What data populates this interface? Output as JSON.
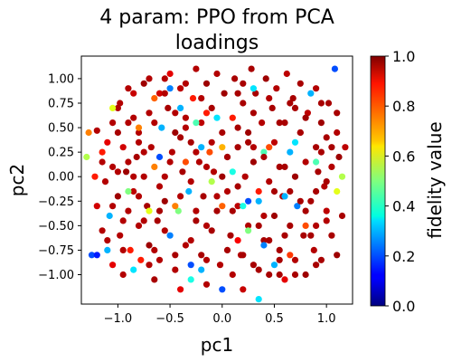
{
  "chart_data": {
    "type": "scatter",
    "title_line1": "4 param:  PPO from PCA",
    "title_line2": "loadings",
    "xlabel": "pc1",
    "ylabel": "pc2",
    "xlim": [
      -1.35,
      1.25
    ],
    "ylim": [
      -1.3,
      1.23
    ],
    "xticks": [
      -1.0,
      -0.5,
      0.0,
      0.5,
      1.0
    ],
    "xtick_labels": [
      "−1.0",
      "−0.5",
      "0.0",
      "0.5",
      "1.0"
    ],
    "yticks": [
      1.0,
      0.75,
      0.5,
      0.25,
      0.0,
      -0.25,
      -0.5,
      -0.75,
      -1.0
    ],
    "ytick_labels": [
      "1.00",
      "0.75",
      "0.50",
      "0.25",
      "0.00",
      "−0.25",
      "−0.50",
      "−0.75",
      "−1.00"
    ],
    "colorbar": {
      "label": "fidelity value",
      "range": [
        0.0,
        1.0
      ],
      "ticks": [
        1.0,
        0.8,
        0.6,
        0.4,
        0.2,
        0.0
      ],
      "tick_labels": [
        "1.0",
        "0.8",
        "0.6",
        "0.4",
        "0.2",
        "0.0"
      ],
      "colormap": "jet"
    },
    "grid": false,
    "marker": "filled-circle",
    "points": [
      [
        -1.3,
        0.2,
        0.55
      ],
      [
        -1.28,
        0.45,
        0.75
      ],
      [
        -1.25,
        -0.8,
        0.2
      ],
      [
        -1.2,
        -0.8,
        0.15
      ],
      [
        -1.22,
        0.0,
        0.85
      ],
      [
        -1.2,
        0.47,
        0.95
      ],
      [
        -1.2,
        -0.3,
        0.92
      ],
      [
        -1.15,
        0.25,
        0.85
      ],
      [
        -1.1,
        -0.75,
        0.3
      ],
      [
        -1.15,
        -0.55,
        0.95
      ],
      [
        -1.12,
        -0.05,
        0.95
      ],
      [
        -1.1,
        0.35,
        0.9
      ],
      [
        -1.08,
        -0.4,
        0.3
      ],
      [
        -1.05,
        0.1,
        0.95
      ],
      [
        -1.05,
        0.55,
        0.95
      ],
      [
        -1.05,
        -0.9,
        0.9
      ],
      [
        -1.0,
        -0.2,
        0.97
      ],
      [
        -1.0,
        0.7,
        0.95
      ],
      [
        -0.98,
        -0.6,
        0.95
      ],
      [
        -0.95,
        0.3,
        0.92
      ],
      [
        -0.95,
        -1.0,
        0.95
      ],
      [
        -0.92,
        0.05,
        0.97
      ],
      [
        -0.9,
        -0.35,
        0.95
      ],
      [
        -0.9,
        0.55,
        0.95
      ],
      [
        -0.88,
        -0.75,
        0.85
      ],
      [
        -0.85,
        0.85,
        0.93
      ],
      [
        -0.85,
        -0.15,
        0.94
      ],
      [
        -0.82,
        0.2,
        0.96
      ],
      [
        -0.8,
        -0.5,
        0.95
      ],
      [
        -0.8,
        0.45,
        0.95
      ],
      [
        -0.78,
        -0.85,
        0.85
      ],
      [
        -0.75,
        0.95,
        0.97
      ],
      [
        -0.75,
        0.0,
        0.95
      ],
      [
        -0.72,
        -0.3,
        0.96
      ],
      [
        -0.7,
        0.65,
        0.95
      ],
      [
        -0.7,
        -0.7,
        0.97
      ],
      [
        -0.68,
        0.3,
        0.95
      ],
      [
        -0.65,
        -1.05,
        0.96
      ],
      [
        -0.65,
        0.1,
        0.75
      ],
      [
        -0.62,
        -0.45,
        0.96
      ],
      [
        -0.6,
        0.85,
        0.92
      ],
      [
        -0.6,
        -0.85,
        0.95
      ],
      [
        -0.58,
        0.5,
        0.3
      ],
      [
        -0.55,
        0.0,
        0.95
      ],
      [
        -0.55,
        -0.25,
        0.97
      ],
      [
        -0.52,
        0.7,
        0.96
      ],
      [
        -0.5,
        -0.6,
        0.25
      ],
      [
        -0.5,
        1.05,
        0.9
      ],
      [
        -0.48,
        0.25,
        0.95
      ],
      [
        -0.45,
        -0.95,
        0.95
      ],
      [
        -0.45,
        0.45,
        0.97
      ],
      [
        -0.42,
        -0.35,
        0.5
      ],
      [
        -0.4,
        0.9,
        0.94
      ],
      [
        -0.4,
        -1.15,
        0.9
      ],
      [
        -0.38,
        0.05,
        0.96
      ],
      [
        -0.35,
        -0.7,
        0.95
      ],
      [
        -0.35,
        0.6,
        0.95
      ],
      [
        -0.32,
        -0.15,
        0.3
      ],
      [
        -0.3,
        -1.05,
        0.4
      ],
      [
        -0.3,
        0.35,
        0.96
      ],
      [
        -0.28,
        0.8,
        0.85
      ],
      [
        -0.25,
        -0.45,
        0.96
      ],
      [
        -0.25,
        1.1,
        0.95
      ],
      [
        -0.22,
        0.15,
        0.95
      ],
      [
        -0.2,
        -0.8,
        0.96
      ],
      [
        -0.2,
        0.55,
        0.94
      ],
      [
        -0.18,
        -0.2,
        0.96
      ],
      [
        -0.15,
        0.95,
        0.97
      ],
      [
        -0.15,
        -1.1,
        0.95
      ],
      [
        -0.12,
        0.25,
        0.8
      ],
      [
        -0.1,
        -0.55,
        0.96
      ],
      [
        -0.1,
        0.7,
        0.96
      ],
      [
        -0.08,
        0.05,
        0.95
      ],
      [
        -0.05,
        -0.35,
        0.96
      ],
      [
        -0.05,
        1.05,
        0.95
      ],
      [
        -0.02,
        -0.9,
        0.95
      ],
      [
        0.0,
        0.45,
        0.96
      ],
      [
        0.0,
        -1.15,
        0.2
      ],
      [
        0.02,
        0.85,
        0.97
      ],
      [
        0.05,
        -0.15,
        0.95
      ],
      [
        0.05,
        0.2,
        0.96
      ],
      [
        0.08,
        -0.6,
        0.96
      ],
      [
        0.1,
        0.6,
        0.85
      ],
      [
        0.1,
        -1.0,
        0.95
      ],
      [
        0.12,
        1.0,
        0.96
      ],
      [
        0.15,
        -0.3,
        0.94
      ],
      [
        0.15,
        0.3,
        0.96
      ],
      [
        0.18,
        -0.8,
        0.95
      ],
      [
        0.2,
        0.75,
        0.96
      ],
      [
        0.2,
        -1.15,
        0.93
      ],
      [
        0.22,
        0.0,
        0.95
      ],
      [
        0.25,
        0.45,
        0.97
      ],
      [
        0.25,
        -0.5,
        0.95
      ],
      [
        0.28,
        1.1,
        0.96
      ],
      [
        0.3,
        -0.9,
        0.96
      ],
      [
        0.3,
        0.15,
        0.97
      ],
      [
        0.32,
        0.85,
        0.96
      ],
      [
        0.35,
        -0.25,
        0.3
      ],
      [
        0.35,
        -1.25,
        0.35
      ],
      [
        0.38,
        0.55,
        0.95
      ],
      [
        0.4,
        -0.65,
        0.96
      ],
      [
        0.4,
        0.25,
        0.45
      ],
      [
        0.42,
        1.0,
        0.97
      ],
      [
        0.45,
        -0.05,
        0.95
      ],
      [
        0.45,
        -1.0,
        0.96
      ],
      [
        0.48,
        0.7,
        0.96
      ],
      [
        0.5,
        -0.4,
        0.97
      ],
      [
        0.5,
        0.35,
        0.94
      ],
      [
        0.52,
        0.9,
        0.95
      ],
      [
        0.55,
        -0.75,
        0.96
      ],
      [
        0.55,
        0.1,
        0.96
      ],
      [
        0.58,
        -0.2,
        0.95
      ],
      [
        0.6,
        0.55,
        0.96
      ],
      [
        0.6,
        -1.05,
        0.9
      ],
      [
        0.62,
        1.05,
        0.94
      ],
      [
        0.65,
        -0.5,
        0.96
      ],
      [
        0.65,
        0.25,
        0.3
      ],
      [
        0.68,
        0.8,
        0.96
      ],
      [
        0.7,
        -0.85,
        0.95
      ],
      [
        0.7,
        0.0,
        0.97
      ],
      [
        0.72,
        -0.3,
        0.25
      ],
      [
        0.75,
        0.45,
        0.95
      ],
      [
        0.75,
        0.95,
        0.96
      ],
      [
        0.78,
        -0.6,
        0.96
      ],
      [
        0.8,
        0.15,
        0.95
      ],
      [
        0.8,
        -1.0,
        0.97
      ],
      [
        0.82,
        0.65,
        0.94
      ],
      [
        0.85,
        -0.25,
        0.96
      ],
      [
        0.85,
        0.85,
        0.3
      ],
      [
        0.88,
        -0.75,
        0.95
      ],
      [
        0.9,
        0.3,
        0.96
      ],
      [
        0.9,
        -0.5,
        0.95
      ],
      [
        0.92,
        0.05,
        0.96
      ],
      [
        0.95,
        0.55,
        0.97
      ],
      [
        0.95,
        -0.85,
        0.96
      ],
      [
        0.98,
        -0.1,
        0.95
      ],
      [
        1.0,
        0.4,
        0.96
      ],
      [
        1.0,
        -0.35,
        0.94
      ],
      [
        1.02,
        0.75,
        0.96
      ],
      [
        1.05,
        0.1,
        0.95
      ],
      [
        1.05,
        -0.6,
        0.96
      ],
      [
        1.08,
        1.1,
        0.2
      ],
      [
        1.1,
        -0.15,
        0.6
      ],
      [
        1.1,
        0.45,
        0.95
      ],
      [
        1.12,
        0.2,
        0.97
      ],
      [
        1.15,
        -0.4,
        0.96
      ],
      [
        1.15,
        0.0,
        0.55
      ],
      [
        1.18,
        0.3,
        0.94
      ],
      [
        -0.98,
        0.75,
        0.95
      ],
      [
        -0.85,
        0.0,
        0.95
      ],
      [
        -0.6,
        -0.35,
        0.96
      ],
      [
        -0.3,
        -0.05,
        0.95
      ],
      [
        0.0,
        0.0,
        0.97
      ],
      [
        0.3,
        0.3,
        0.95
      ],
      [
        0.6,
        -0.6,
        0.96
      ],
      [
        0.9,
        0.9,
        0.95
      ],
      [
        -0.4,
        0.4,
        0.96
      ],
      [
        0.4,
        -0.4,
        0.95
      ],
      [
        -0.2,
        -0.95,
        0.3
      ],
      [
        0.2,
        0.95,
        0.96
      ],
      [
        -0.7,
        -0.9,
        0.95
      ],
      [
        0.7,
        0.7,
        0.96
      ],
      [
        -1.15,
        0.15,
        0.95
      ],
      [
        1.1,
        -0.8,
        0.97
      ],
      [
        -0.55,
        1.0,
        0.95
      ],
      [
        0.55,
        -1.0,
        0.96
      ],
      [
        -0.05,
        0.6,
        0.35
      ],
      [
        0.05,
        -0.75,
        0.96
      ],
      [
        -0.95,
        -0.45,
        0.95
      ],
      [
        0.95,
        0.25,
        0.96
      ],
      [
        -0.25,
        0.25,
        0.95
      ],
      [
        0.25,
        -0.25,
        0.2
      ],
      [
        -0.65,
        0.55,
        0.95
      ],
      [
        0.65,
        -0.15,
        0.96
      ],
      [
        -0.8,
        -0.2,
        0.95
      ],
      [
        0.8,
        0.6,
        0.97
      ],
      [
        -1.0,
        0.45,
        0.96
      ],
      [
        1.0,
        -0.45,
        0.95
      ],
      [
        -0.45,
        -0.8,
        0.96
      ],
      [
        0.45,
        0.8,
        0.95
      ],
      [
        -0.15,
        -0.5,
        0.95
      ],
      [
        0.15,
        0.5,
        0.96
      ],
      [
        -0.85,
        0.6,
        0.95
      ],
      [
        0.85,
        -0.6,
        0.96
      ],
      [
        -0.35,
        0.95,
        0.95
      ],
      [
        0.35,
        -0.95,
        0.96
      ],
      [
        -1.1,
        -0.65,
        0.95
      ],
      [
        1.1,
        0.65,
        0.96
      ],
      [
        -0.75,
        0.25,
        0.95
      ],
      [
        0.75,
        -0.25,
        0.96
      ],
      [
        -0.55,
        -0.55,
        0.95
      ],
      [
        0.55,
        0.55,
        0.96
      ],
      [
        -0.1,
        0.35,
        0.95
      ],
      [
        0.1,
        -0.35,
        0.96
      ],
      [
        -0.9,
        0.9,
        0.95
      ],
      [
        0.9,
        -0.9,
        0.96
      ],
      [
        -0.5,
        0.15,
        0.95
      ],
      [
        0.5,
        -0.15,
        0.96
      ],
      [
        -0.3,
        -0.65,
        0.95
      ],
      [
        0.3,
        0.65,
        0.96
      ],
      [
        -0.7,
        1.0,
        0.95
      ],
      [
        0.7,
        -1.0,
        0.96
      ],
      [
        -1.05,
        -0.3,
        0.95
      ],
      [
        1.05,
        0.3,
        0.96
      ],
      [
        -0.2,
        0.8,
        0.95
      ],
      [
        0.2,
        -0.8,
        0.96
      ],
      [
        -0.6,
        -0.1,
        0.95
      ],
      [
        0.6,
        0.1,
        0.96
      ],
      [
        -0.4,
        -0.2,
        0.95
      ],
      [
        0.4,
        0.2,
        0.96
      ],
      [
        -0.8,
        0.35,
        0.95
      ],
      [
        0.8,
        -0.35,
        0.96
      ],
      [
        -0.15,
        0.1,
        0.95
      ],
      [
        0.15,
        -0.1,
        0.96
      ],
      [
        -0.95,
        -0.75,
        0.95
      ],
      [
        0.95,
        0.75,
        0.96
      ],
      [
        -0.45,
        0.65,
        0.95
      ],
      [
        0.45,
        -0.65,
        0.96
      ],
      [
        -0.25,
        -0.35,
        0.95
      ],
      [
        0.25,
        0.35,
        0.96
      ],
      [
        -0.65,
        -0.75,
        0.95
      ],
      [
        0.65,
        0.75,
        0.96
      ],
      [
        -0.05,
        -0.2,
        0.95
      ],
      [
        0.05,
        0.2,
        0.96
      ],
      [
        -0.9,
        0.15,
        0.95
      ],
      [
        0.9,
        -0.15,
        0.96
      ],
      [
        -0.35,
        0.5,
        0.95
      ],
      [
        0.35,
        -0.5,
        0.96
      ],
      [
        -0.75,
        -0.45,
        0.95
      ],
      [
        0.75,
        0.45,
        0.96
      ],
      [
        -0.55,
        0.85,
        0.95
      ],
      [
        0.55,
        -0.85,
        0.96
      ],
      [
        -0.15,
        -0.85,
        0.95
      ],
      [
        0.15,
        0.85,
        0.96
      ],
      [
        -1.0,
        0.05,
        0.95
      ],
      [
        1.0,
        -0.05,
        0.96
      ],
      [
        -0.85,
        -0.95,
        0.35
      ],
      [
        -0.4,
        0.7,
        0.3
      ],
      [
        0.4,
        -0.7,
        0.25
      ],
      [
        -0.6,
        0.2,
        0.2
      ],
      [
        0.6,
        -0.2,
        0.3
      ],
      [
        -0.25,
        0.55,
        0.45
      ],
      [
        0.25,
        -0.55,
        0.5
      ],
      [
        -0.1,
        -0.05,
        0.55
      ],
      [
        0.1,
        0.05,
        0.4
      ],
      [
        -0.7,
        -0.35,
        0.6
      ],
      [
        0.7,
        0.35,
        0.35
      ],
      [
        -0.5,
        0.9,
        0.25
      ],
      [
        0.5,
        -0.9,
        0.3
      ],
      [
        -0.3,
        -0.9,
        0.2
      ],
      [
        0.3,
        0.9,
        0.35
      ],
      [
        -0.9,
        -0.15,
        0.5
      ],
      [
        0.9,
        0.15,
        0.45
      ],
      [
        -0.2,
        0.3,
        0.3
      ],
      [
        0.2,
        -0.3,
        0.4
      ],
      [
        -1.05,
        0.7,
        0.6
      ],
      [
        0.0,
        0.3,
        0.7
      ],
      [
        -0.45,
        -0.3,
        0.75
      ],
      [
        0.45,
        0.3,
        0.8
      ],
      [
        -0.8,
        0.5,
        0.75
      ],
      [
        0.8,
        -0.5,
        0.8
      ],
      [
        0.0,
        -0.3,
        0.78
      ],
      [
        -0.35,
        0.15,
        0.8
      ],
      [
        0.35,
        -0.15,
        0.85
      ],
      [
        -0.65,
        0.8,
        0.78
      ],
      [
        0.65,
        -0.8,
        0.82
      ],
      [
        -0.15,
        0.65,
        0.85
      ],
      [
        0.15,
        -0.65,
        0.88
      ]
    ]
  }
}
